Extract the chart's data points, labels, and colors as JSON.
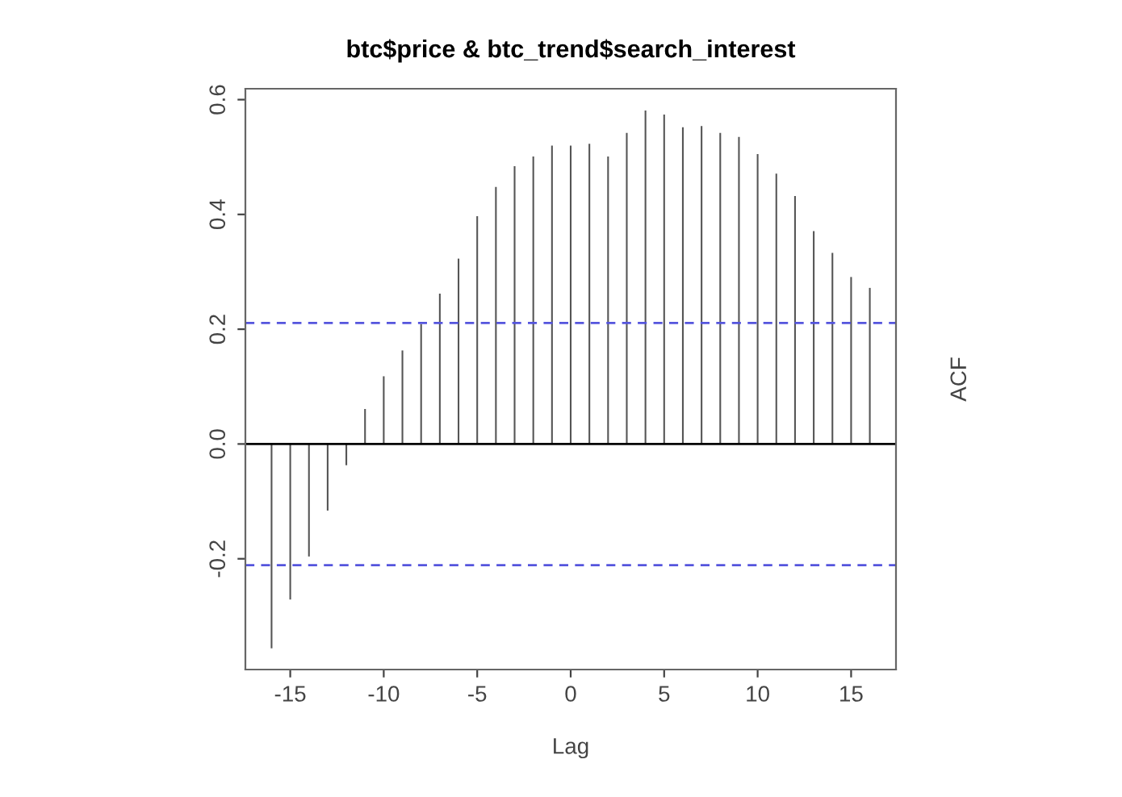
{
  "chart_data": {
    "type": "bar",
    "title": "btc$price & btc_trend$search_interest",
    "xlabel": "Lag",
    "ylabel": "ACF",
    "x": [
      -16,
      -15,
      -14,
      -13,
      -12,
      -11,
      -10,
      -9,
      -8,
      -7,
      -6,
      -5,
      -4,
      -3,
      -2,
      -1,
      0,
      1,
      2,
      3,
      4,
      5,
      6,
      7,
      8,
      9,
      10,
      11,
      12,
      13,
      14,
      15,
      16
    ],
    "values": [
      -0.356,
      -0.271,
      -0.196,
      -0.116,
      -0.037,
      0.061,
      0.118,
      0.163,
      0.209,
      0.262,
      0.323,
      0.397,
      0.448,
      0.484,
      0.501,
      0.52,
      0.52,
      0.523,
      0.501,
      0.542,
      0.581,
      0.574,
      0.552,
      0.554,
      0.542,
      0.535,
      0.505,
      0.471,
      0.432,
      0.371,
      0.333,
      0.291,
      0.272
    ],
    "color": "#555555",
    "xlim": [
      -17.4,
      17.4
    ],
    "ylim": [
      -0.393,
      0.619
    ],
    "xticks": [
      -15,
      -10,
      -5,
      0,
      5,
      10,
      15
    ],
    "yticks": [
      {
        "value": -0.2,
        "label": "-0.2"
      },
      {
        "value": 0.0,
        "label": "0.0"
      },
      {
        "value": 0.2,
        "label": "0.2"
      },
      {
        "value": 0.4,
        "label": "0.4"
      },
      {
        "value": 0.6,
        "label": "0.6"
      }
    ],
    "ref_lines": [
      {
        "axis": "y",
        "value": 0.211,
        "color": "#5555dd",
        "line_style": "dashed"
      },
      {
        "axis": "y",
        "value": -0.211,
        "color": "#5555dd",
        "line_style": "dashed"
      },
      {
        "axis": "y",
        "value": 0,
        "color": "#000000",
        "line_style": "solid"
      }
    ],
    "grid": false,
    "legend": false
  }
}
